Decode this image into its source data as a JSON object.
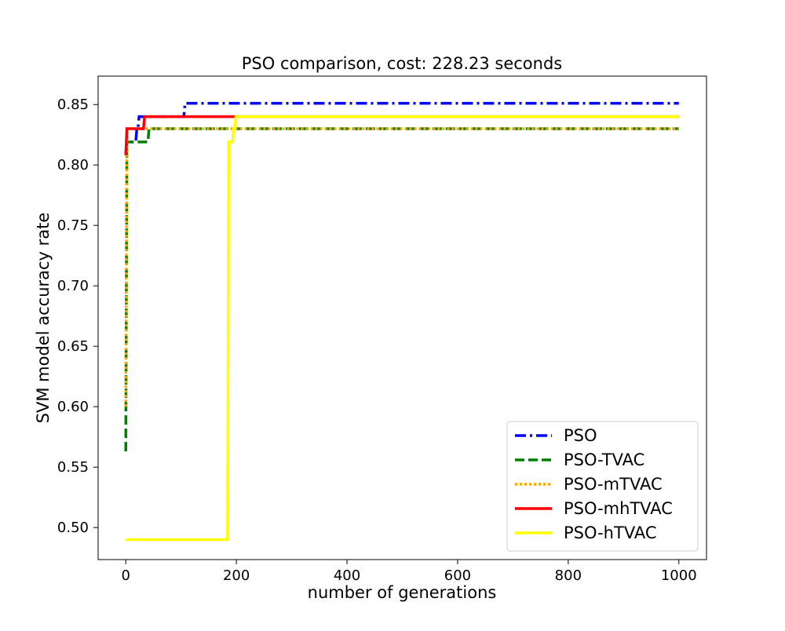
{
  "chart_data": {
    "type": "line",
    "title": "PSO comparison, cost: 228.23 seconds",
    "xlabel": "number of generations",
    "ylabel": "SVM model accuracy rate",
    "xlim": [
      -50,
      1050
    ],
    "ylim": [
      0.4735,
      0.8735
    ],
    "x_ticks": [
      0,
      200,
      400,
      600,
      800,
      1000
    ],
    "x_tick_labels": [
      "0",
      "200",
      "400",
      "600",
      "800",
      "1000"
    ],
    "y_ticks": [
      0.5,
      0.55,
      0.6,
      0.65,
      0.7,
      0.75,
      0.8,
      0.85
    ],
    "y_tick_labels": [
      "0.50",
      "0.55",
      "0.60",
      "0.65",
      "0.70",
      "0.75",
      "0.80",
      "0.85"
    ],
    "grid": false,
    "legend_position": "lower-right",
    "series": [
      {
        "name": "PSO",
        "color": "#0000ff",
        "dash": "dashdot",
        "points": [
          [
            0,
            0.81
          ],
          [
            2,
            0.819
          ],
          [
            18,
            0.819
          ],
          [
            20,
            0.83
          ],
          [
            22,
            0.83
          ],
          [
            24,
            0.84
          ],
          [
            105,
            0.84
          ],
          [
            107,
            0.851
          ],
          [
            1000,
            0.851
          ]
        ]
      },
      {
        "name": "PSO-TVAC",
        "color": "#008000",
        "dash": "dashed",
        "points": [
          [
            0,
            0.563
          ],
          [
            2,
            0.819
          ],
          [
            40,
            0.819
          ],
          [
            42,
            0.83
          ],
          [
            1000,
            0.83
          ]
        ]
      },
      {
        "name": "PSO-mTVAC",
        "color": "#ffa500",
        "dash": "dotted",
        "points": [
          [
            0,
            0.6
          ],
          [
            2,
            0.83
          ],
          [
            1000,
            0.83
          ]
        ]
      },
      {
        "name": "PSO-mhTVAC",
        "color": "#ff0000",
        "dash": "solid",
        "points": [
          [
            0,
            0.808
          ],
          [
            2,
            0.83
          ],
          [
            32,
            0.83
          ],
          [
            34,
            0.84
          ],
          [
            1000,
            0.84
          ]
        ]
      },
      {
        "name": "PSO-hTVAC",
        "color": "#ffff00",
        "dash": "solid",
        "points": [
          [
            0,
            0.49
          ],
          [
            184,
            0.49
          ],
          [
            186,
            0.819
          ],
          [
            193,
            0.819
          ],
          [
            195,
            0.83
          ],
          [
            197,
            0.83
          ],
          [
            199,
            0.84
          ],
          [
            1000,
            0.84
          ]
        ]
      }
    ]
  }
}
